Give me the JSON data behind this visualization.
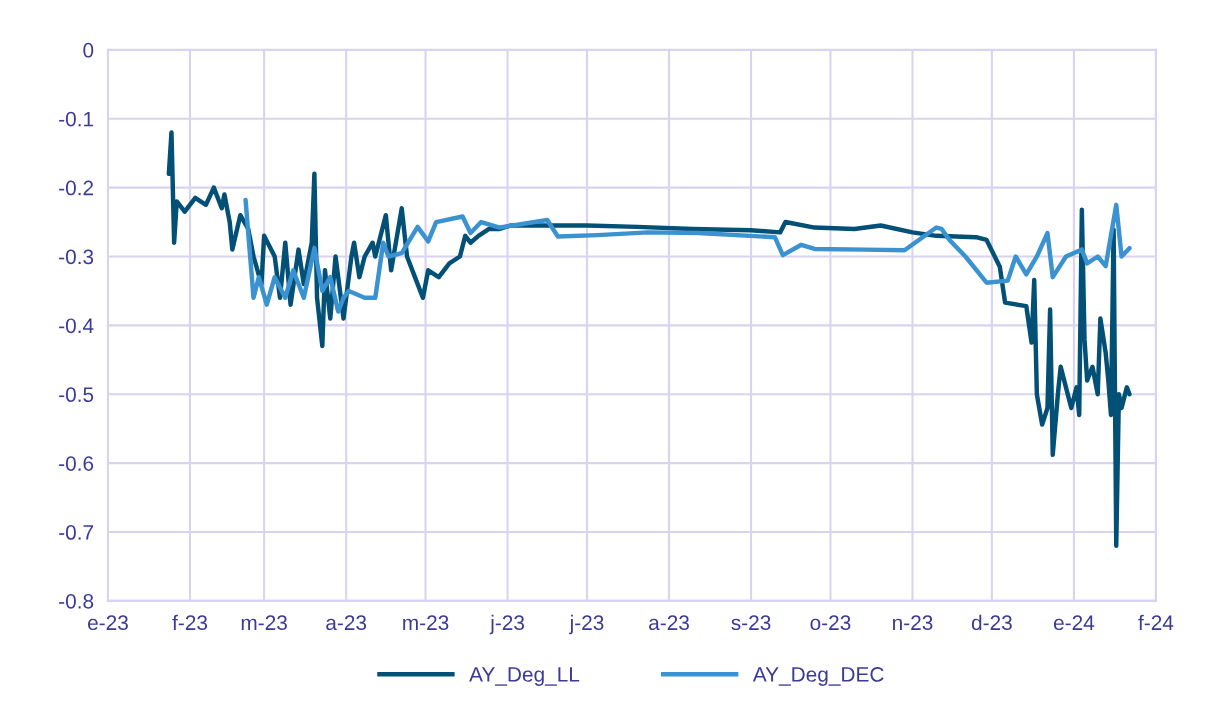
{
  "chart_data": {
    "type": "line",
    "xlim": [
      "2023-01-01",
      "2024-02-01"
    ],
    "xticks": [
      {
        "value": "2023-01-01",
        "label": "e-23"
      },
      {
        "value": "2023-02-01",
        "label": "f-23"
      },
      {
        "value": "2023-03-01",
        "label": "m-23"
      },
      {
        "value": "2023-04-01",
        "label": "a-23"
      },
      {
        "value": "2023-05-01",
        "label": "m-23"
      },
      {
        "value": "2023-06-01",
        "label": "j-23"
      },
      {
        "value": "2023-07-01",
        "label": "j-23"
      },
      {
        "value": "2023-08-01",
        "label": "a-23"
      },
      {
        "value": "2023-09-01",
        "label": "s-23"
      },
      {
        "value": "2023-10-01",
        "label": "o-23"
      },
      {
        "value": "2023-11-01",
        "label": "n-23"
      },
      {
        "value": "2023-12-01",
        "label": "d-23"
      },
      {
        "value": "2024-01-01",
        "label": "e-24"
      },
      {
        "value": "2024-02-01",
        "label": "f-24"
      }
    ],
    "ylim": [
      -0.8,
      0
    ],
    "yticks": [
      -0.8,
      -0.7,
      -0.6,
      -0.5,
      -0.4,
      -0.3,
      -0.2,
      -0.1,
      0
    ],
    "grid": true,
    "legend": "bottom",
    "marker": "none",
    "line_style": "solid",
    "series": [
      {
        "name": "AY_Deg_LL",
        "color": "#035077",
        "x": [
          "2023-01-24",
          "2023-01-25",
          "2023-01-26",
          "2023-01-27",
          "2023-01-30",
          "2023-02-03",
          "2023-02-07",
          "2023-02-10",
          "2023-02-13",
          "2023-02-14",
          "2023-02-16",
          "2023-02-17",
          "2023-02-20",
          "2023-02-23",
          "2023-02-25",
          "2023-02-28",
          "2023-03-01",
          "2023-03-05",
          "2023-03-07",
          "2023-03-09",
          "2023-03-11",
          "2023-03-14",
          "2023-03-16",
          "2023-03-19",
          "2023-03-20",
          "2023-03-21",
          "2023-03-23",
          "2023-03-24",
          "2023-03-26",
          "2023-03-28",
          "2023-03-31",
          "2023-04-03",
          "2023-04-04",
          "2023-04-06",
          "2023-04-08",
          "2023-04-11",
          "2023-04-12",
          "2023-04-16",
          "2023-04-18",
          "2023-04-22",
          "2023-04-24",
          "2023-04-27",
          "2023-04-30",
          "2023-05-02",
          "2023-05-06",
          "2023-05-10",
          "2023-05-14",
          "2023-05-16",
          "2023-05-18",
          "2023-05-21",
          "2023-05-25",
          "2023-05-29",
          "2023-06-02",
          "2023-06-15",
          "2023-07-01",
          "2023-07-20",
          "2023-08-10",
          "2023-09-01",
          "2023-09-12",
          "2023-09-14",
          "2023-09-25",
          "2023-10-10",
          "2023-10-20",
          "2023-11-01",
          "2023-11-10",
          "2023-11-25",
          "2023-11-29",
          "2023-12-04",
          "2023-12-06",
          "2023-12-14",
          "2023-12-16",
          "2023-12-17",
          "2023-12-18",
          "2023-12-20",
          "2023-12-22",
          "2023-12-23",
          "2023-12-24",
          "2023-12-26",
          "2023-12-27",
          "2023-12-29",
          "2023-12-31",
          "2024-01-02",
          "2024-01-03",
          "2024-01-04",
          "2024-01-05",
          "2024-01-06",
          "2024-01-08",
          "2024-01-10",
          "2024-01-11",
          "2024-01-13",
          "2024-01-14",
          "2024-01-15",
          "2024-01-16",
          "2024-01-17",
          "2024-01-18",
          "2024-01-19",
          "2024-01-21",
          "2024-01-22"
        ],
        "values": [
          -0.18,
          -0.12,
          -0.28,
          -0.22,
          -0.235,
          -0.215,
          -0.225,
          -0.2,
          -0.23,
          -0.21,
          -0.25,
          -0.29,
          -0.24,
          -0.26,
          -0.3,
          -0.34,
          -0.27,
          -0.3,
          -0.36,
          -0.28,
          -0.37,
          -0.29,
          -0.34,
          -0.28,
          -0.18,
          -0.36,
          -0.43,
          -0.32,
          -0.39,
          -0.3,
          -0.39,
          -0.3,
          -0.28,
          -0.33,
          -0.3,
          -0.28,
          -0.3,
          -0.24,
          -0.32,
          -0.23,
          -0.3,
          -0.33,
          -0.36,
          -0.32,
          -0.33,
          -0.31,
          -0.3,
          -0.27,
          -0.28,
          -0.27,
          -0.26,
          -0.26,
          -0.255,
          -0.255,
          -0.255,
          -0.257,
          -0.26,
          -0.262,
          -0.265,
          -0.25,
          -0.258,
          -0.26,
          -0.255,
          -0.265,
          -0.27,
          -0.272,
          -0.276,
          -0.315,
          -0.367,
          -0.372,
          -0.425,
          -0.334,
          -0.5,
          -0.544,
          -0.52,
          -0.377,
          -0.588,
          -0.497,
          -0.46,
          -0.49,
          -0.52,
          -0.49,
          -0.53,
          -0.232,
          -0.42,
          -0.48,
          -0.46,
          -0.5,
          -0.39,
          -0.44,
          -0.48,
          -0.53,
          -0.261,
          -0.72,
          -0.5,
          -0.52,
          -0.49,
          -0.5
        ]
      },
      {
        "name": "AY_Deg_DEC",
        "color": "#3a93d0",
        "x": [
          "2023-02-22",
          "2023-02-25",
          "2023-02-27",
          "2023-03-02",
          "2023-03-05",
          "2023-03-09",
          "2023-03-12",
          "2023-03-16",
          "2023-03-20",
          "2023-03-23",
          "2023-03-26",
          "2023-03-29",
          "2023-03-31",
          "2023-04-02",
          "2023-04-08",
          "2023-04-12",
          "2023-04-15",
          "2023-04-17",
          "2023-04-22",
          "2023-04-28",
          "2023-05-02",
          "2023-05-05",
          "2023-05-15",
          "2023-05-18",
          "2023-05-22",
          "2023-05-29",
          "2023-06-16",
          "2023-06-20",
          "2023-07-05",
          "2023-07-24",
          "2023-08-12",
          "2023-09-10",
          "2023-09-13",
          "2023-09-20",
          "2023-09-25",
          "2023-10-14",
          "2023-10-29",
          "2023-11-10",
          "2023-11-12",
          "2023-11-15",
          "2023-11-21",
          "2023-11-29",
          "2023-12-07",
          "2023-12-10",
          "2023-12-14",
          "2023-12-18",
          "2023-12-22",
          "2023-12-24",
          "2023-12-29",
          "2024-01-04",
          "2024-01-06",
          "2024-01-10",
          "2024-01-13",
          "2024-01-17",
          "2024-01-19",
          "2024-01-22"
        ],
        "values": [
          -0.218,
          -0.36,
          -0.33,
          -0.37,
          -0.33,
          -0.36,
          -0.32,
          -0.36,
          -0.288,
          -0.35,
          -0.33,
          -0.38,
          -0.36,
          -0.35,
          -0.36,
          -0.36,
          -0.28,
          -0.3,
          -0.295,
          -0.257,
          -0.278,
          -0.25,
          -0.242,
          -0.266,
          -0.25,
          -0.258,
          -0.247,
          -0.271,
          -0.269,
          -0.265,
          -0.266,
          -0.272,
          -0.298,
          -0.283,
          -0.289,
          -0.29,
          -0.291,
          -0.258,
          -0.26,
          -0.276,
          -0.3,
          -0.338,
          -0.335,
          -0.3,
          -0.326,
          -0.3,
          -0.266,
          -0.33,
          -0.3,
          -0.29,
          -0.31,
          -0.3,
          -0.314,
          -0.225,
          -0.3,
          -0.288
        ]
      }
    ]
  }
}
